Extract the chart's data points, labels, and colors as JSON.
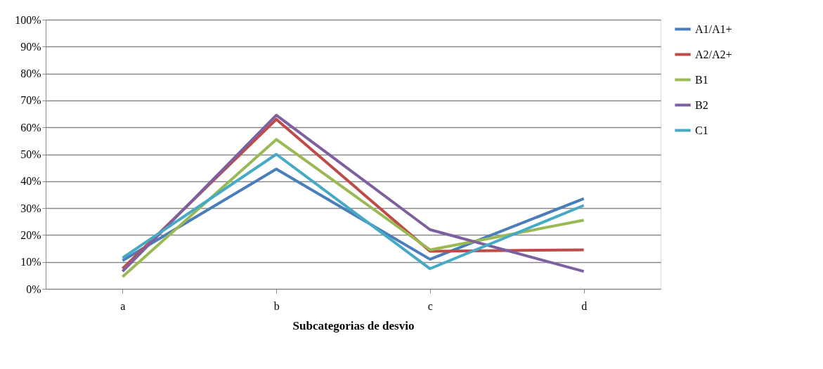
{
  "chart_data": {
    "type": "line",
    "xlabel": "Subcategorias de desvio",
    "categories": [
      "a",
      "b",
      "c",
      "d"
    ],
    "ylim": [
      0,
      100
    ],
    "yticks": [
      {
        "value": 0,
        "label": "0%"
      },
      {
        "value": 10,
        "label": "10%"
      },
      {
        "value": 20,
        "label": "20%"
      },
      {
        "value": 30,
        "label": "30%"
      },
      {
        "value": 40,
        "label": "40%"
      },
      {
        "value": 50,
        "label": "50%"
      },
      {
        "value": 60,
        "label": "60%"
      },
      {
        "value": 70,
        "label": "70%"
      },
      {
        "value": 80,
        "label": "80%"
      },
      {
        "value": 90,
        "label": "90%"
      },
      {
        "value": 100,
        "label": "100%"
      }
    ],
    "grid": "y",
    "legend": "right",
    "marker": "none",
    "line_style": "solid",
    "series": [
      {
        "name": "A1/A1+",
        "color": "#4a7ebb",
        "values": [
          10.5,
          44.5,
          11,
          33.5
        ]
      },
      {
        "name": "A2/A2+",
        "color": "#be4b48",
        "values": [
          7.5,
          63,
          14,
          14.5
        ]
      },
      {
        "name": "B1",
        "color": "#98b954",
        "values": [
          4.5,
          55.5,
          14.5,
          25.5
        ]
      },
      {
        "name": "B2",
        "color": "#7d60a0",
        "values": [
          6.5,
          64.5,
          22,
          6.5
        ]
      },
      {
        "name": "C1",
        "color": "#46aac5",
        "values": [
          11.5,
          50,
          7.5,
          31
        ]
      }
    ]
  }
}
